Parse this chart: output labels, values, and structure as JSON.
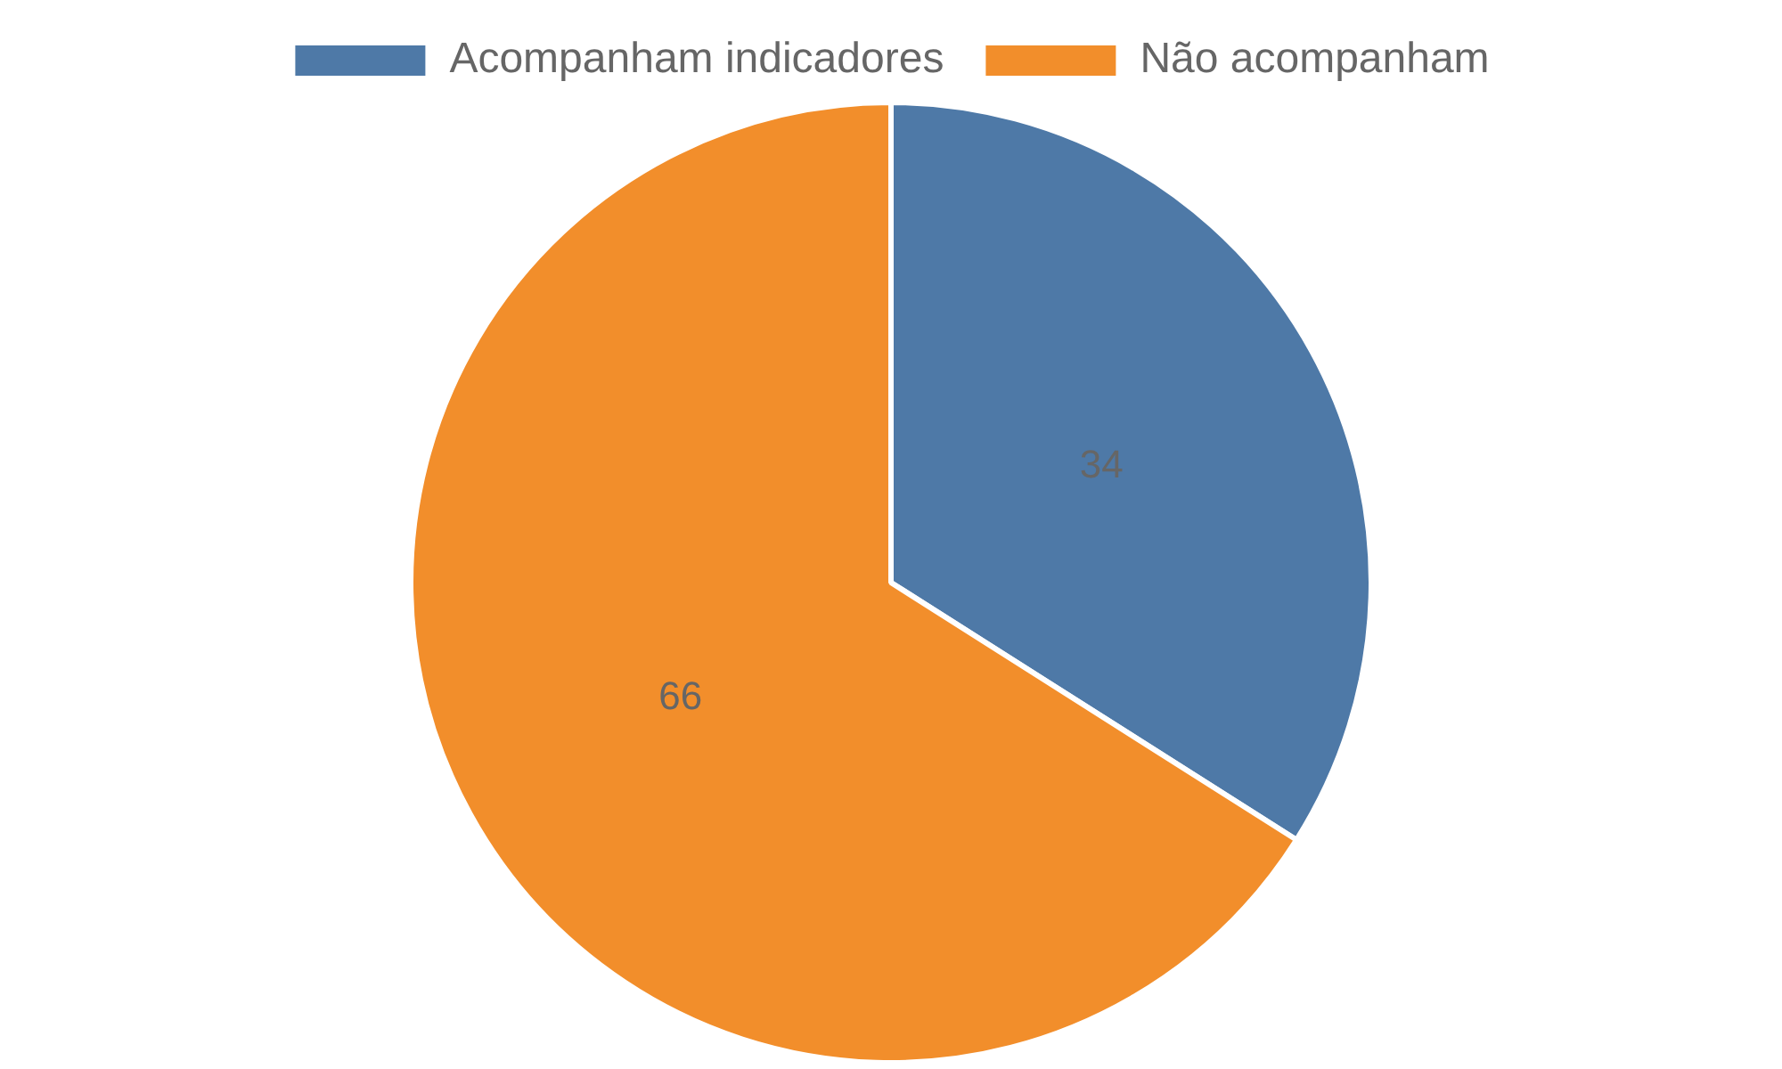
{
  "chart_data": {
    "type": "pie",
    "categories": [
      "Acompanham indicadores",
      "Não acompanham"
    ],
    "values": [
      34,
      66
    ],
    "colors": [
      "#4e79a7",
      "#f28e2b"
    ],
    "legend": "top",
    "data_labels": true
  }
}
